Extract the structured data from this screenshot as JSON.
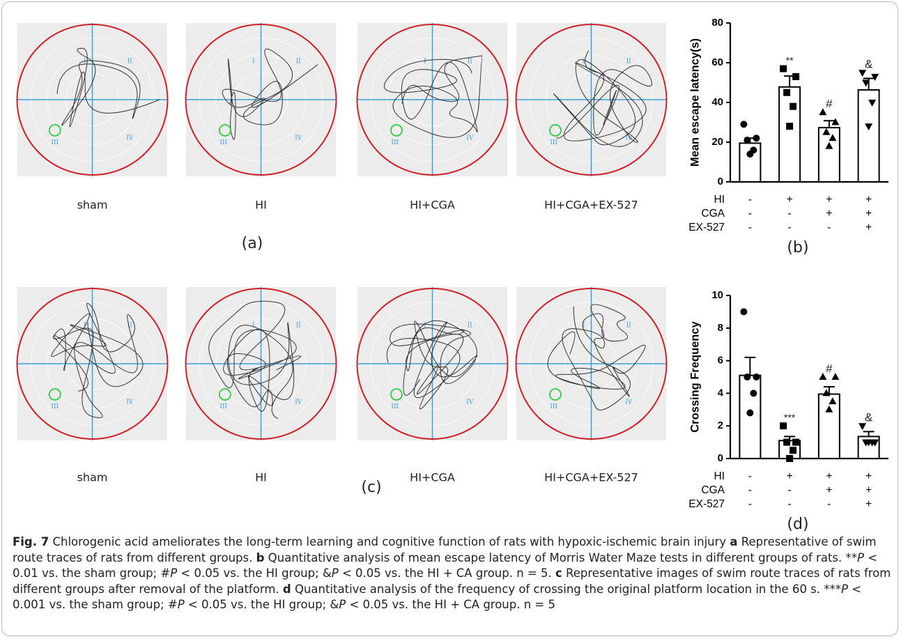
{
  "quadrant_labels": [
    "I",
    "II",
    "III",
    "IV"
  ],
  "figure_rows": [
    {
      "panel_label": "(a)",
      "groups": [
        "sham",
        "HI",
        "HI+CGA",
        "HI+CGA+EX-527"
      ]
    },
    {
      "panel_label": "(c)",
      "groups": [
        "sham",
        "HI",
        "HI+CGA",
        "HI+CGA+EX-527"
      ]
    }
  ],
  "chart_data": [
    {
      "type": "bar",
      "panel_label": "(b)",
      "y_label": "Mean escape latency(s)",
      "categories": [
        null,
        null,
        null,
        null
      ],
      "values": [
        19.5,
        47.8,
        27.3,
        46.3
      ],
      "errors": [
        2.5,
        5.5,
        3.5,
        5.8
      ],
      "points": [
        [
          29,
          22,
          21,
          16,
          14
        ],
        [
          57,
          53,
          45,
          38,
          28
        ],
        [
          35,
          30,
          25,
          22,
          18
        ],
        [
          55,
          53,
          50,
          40,
          28
        ]
      ],
      "markers": [
        "circle",
        "square",
        "triangle-up",
        "triangle-down"
      ],
      "annotations": [
        null,
        "**",
        "#",
        "&"
      ],
      "color": "#ffffff",
      "point_color": "#000000",
      "ylim": [
        0,
        80
      ],
      "yticks": [
        0,
        20,
        40,
        60,
        80
      ],
      "conditions": {
        "labels": [
          "HI",
          "CGA",
          "EX-527"
        ],
        "rows": [
          [
            "-",
            "+",
            "+",
            "+"
          ],
          [
            "-",
            "-",
            "+",
            "+"
          ],
          [
            "-",
            "-",
            "-",
            "+"
          ]
        ]
      }
    },
    {
      "type": "bar",
      "panel_label": "(d)",
      "y_label": "Crossing Frequency",
      "categories": [
        null,
        null,
        null,
        null
      ],
      "values": [
        5.1,
        1.1,
        3.95,
        1.35
      ],
      "errors": [
        1.1,
        0.25,
        0.45,
        0.3
      ],
      "points": [
        [
          9,
          5,
          5,
          4,
          2.8
        ],
        [
          2,
          1,
          1,
          0.5,
          0
        ],
        [
          5,
          5,
          4,
          3.5,
          3
        ],
        [
          2,
          1,
          1,
          1,
          1
        ]
      ],
      "markers": [
        "circle",
        "square",
        "triangle-up",
        "triangle-down"
      ],
      "annotations": [
        null,
        "***",
        "#",
        "&"
      ],
      "color": "#ffffff",
      "point_color": "#000000",
      "ylim": [
        0,
        10
      ],
      "yticks": [
        0,
        2,
        4,
        6,
        8,
        10
      ],
      "conditions": {
        "labels": [
          "HI",
          "CGA",
          "EX-527"
        ],
        "rows": [
          [
            "-",
            "+",
            "+",
            "+"
          ],
          [
            "-",
            "-",
            "+",
            "+"
          ],
          [
            "-",
            "-",
            "-",
            "+"
          ]
        ]
      }
    }
  ],
  "caption": [
    {
      "text": "Fig. 7",
      "bold": true
    },
    {
      "text": " Chlorogenic acid ameliorates the long-term learning and cognitive function of rats with hypoxic-ischemic brain injury "
    },
    {
      "text": "a",
      "bold": true
    },
    {
      "text": " Representative of swim route traces of rats from different groups. "
    },
    {
      "text": "b",
      "bold": true
    },
    {
      "text": " Quantitative analysis of mean escape latency of Morris Water Maze tests in different groups of rats. **"
    },
    {
      "text": "P",
      "italic": true
    },
    {
      "text": " < 0.01 vs. the sham group; #"
    },
    {
      "text": "P",
      "italic": true
    },
    {
      "text": " < 0.05 vs. the HI group; &"
    },
    {
      "text": "P",
      "italic": true
    },
    {
      "text": " < 0.05 vs. the HI + CA group. n = 5. "
    },
    {
      "text": "c",
      "bold": true
    },
    {
      "text": " Representative images of swim route traces of rats from different groups after removal of the platform. "
    },
    {
      "text": "d",
      "bold": true
    },
    {
      "text": " Quantitative analysis of the frequency of crossing the original platform location in the 60 s. ***"
    },
    {
      "text": "P",
      "italic": true
    },
    {
      "text": " < 0.001 vs. the sham group; #"
    },
    {
      "text": "P",
      "italic": true
    },
    {
      "text": " < 0.05 vs. the HI group; &"
    },
    {
      "text": "P",
      "italic": true
    },
    {
      "text": " < 0.05 vs. the HI + CA group. n = 5"
    }
  ]
}
